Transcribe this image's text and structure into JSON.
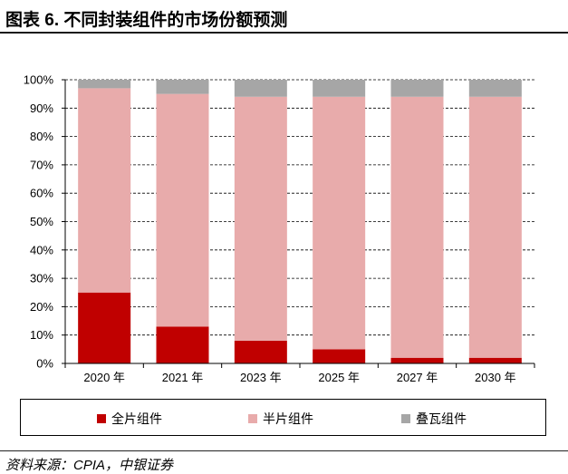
{
  "header": {
    "title": "图表 6. 不同封装组件的市场份额预测"
  },
  "chart_data": {
    "type": "bar",
    "stacked": true,
    "categories": [
      "2020 年",
      "2021 年",
      "2023 年",
      "2025 年",
      "2027 年",
      "2030 年"
    ],
    "series": [
      {
        "name": "全片组件",
        "color": "#C00000",
        "values": [
          25,
          13,
          8,
          5,
          2,
          2
        ]
      },
      {
        "name": "半片组件",
        "color": "#E8ABAB",
        "values": [
          72,
          82,
          86,
          89,
          92,
          92
        ]
      },
      {
        "name": "叠瓦组件",
        "color": "#A6A6A6",
        "values": [
          3,
          5,
          6,
          6,
          6,
          6
        ]
      }
    ],
    "ylim": [
      0,
      100
    ],
    "yticks": [
      {
        "value": 0,
        "label": "0%"
      },
      {
        "value": 10,
        "label": "10%"
      },
      {
        "value": 20,
        "label": "20%"
      },
      {
        "value": 30,
        "label": "30%"
      },
      {
        "value": 40,
        "label": "40%"
      },
      {
        "value": 50,
        "label": "50%"
      },
      {
        "value": 60,
        "label": "60%"
      },
      {
        "value": 70,
        "label": "70%"
      },
      {
        "value": 80,
        "label": "80%"
      },
      {
        "value": 90,
        "label": "90%"
      },
      {
        "value": 100,
        "label": "100%"
      }
    ],
    "title": "",
    "xlabel": "",
    "ylabel": "",
    "grid": true,
    "grid_style": "dashed",
    "legend_position": "bottom"
  },
  "footer": {
    "source": "资料来源：CPIA，中银证券"
  }
}
